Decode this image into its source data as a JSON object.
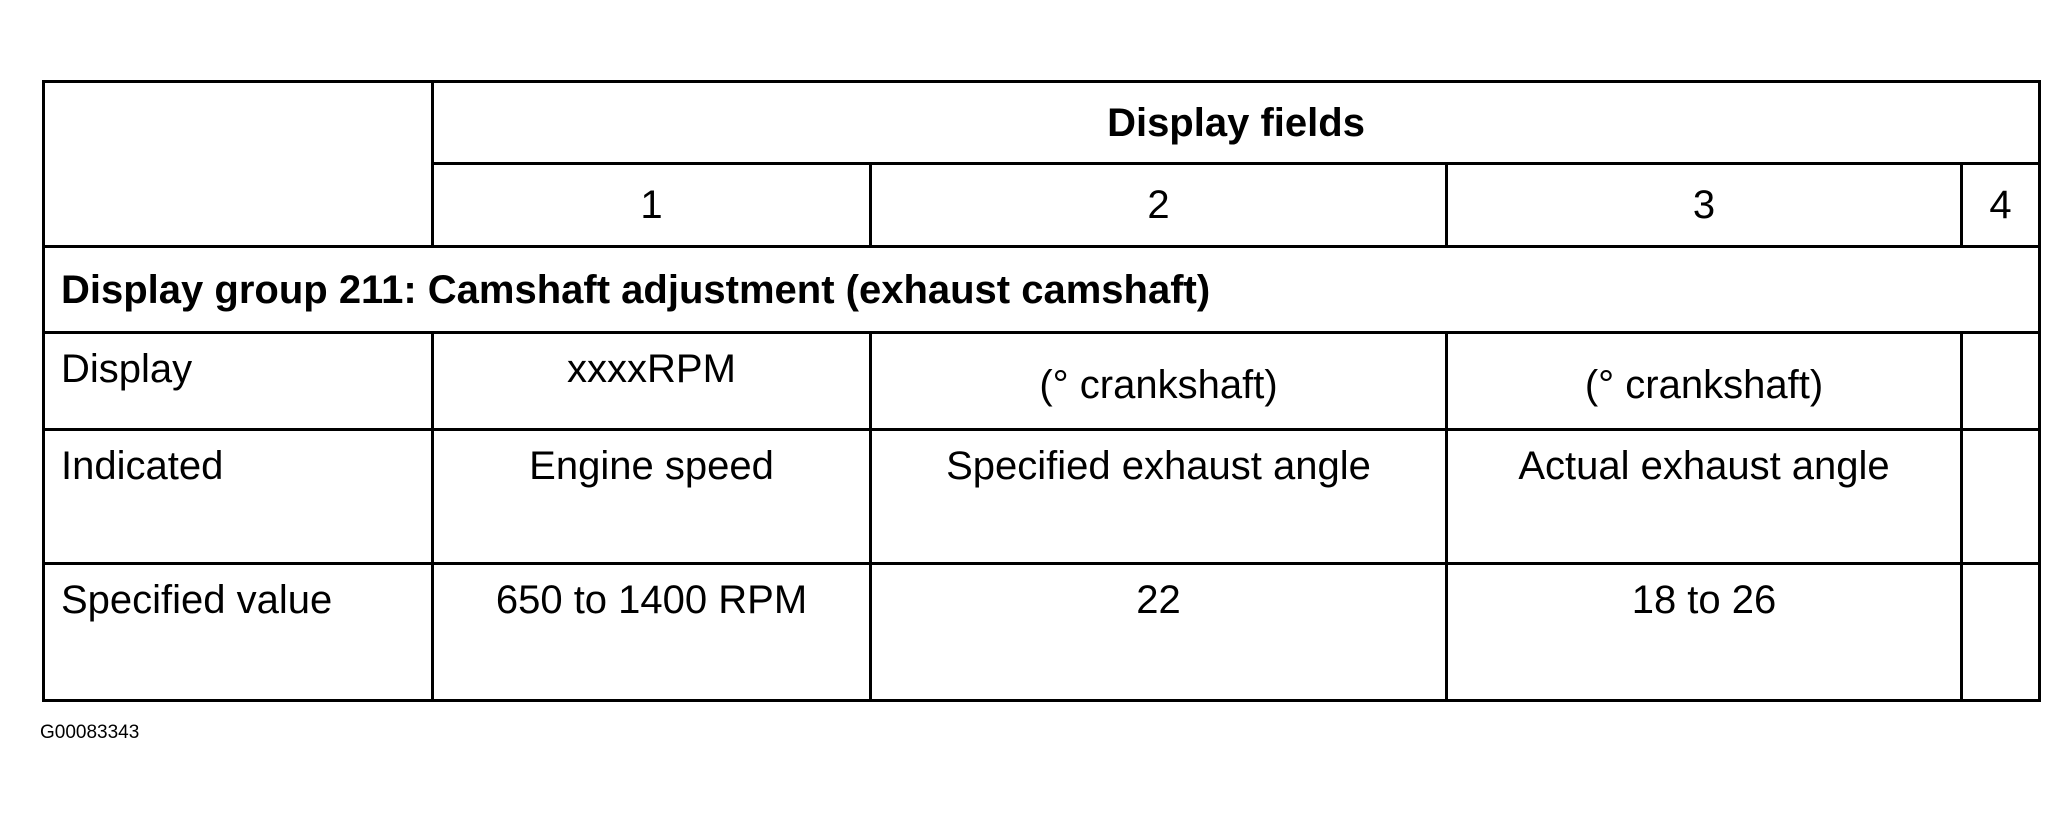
{
  "table": {
    "header": "Display fields",
    "columns": [
      "1",
      "2",
      "3",
      "4"
    ],
    "group_title": "Display group 211: Camshaft adjustment (exhaust camshaft)",
    "rows": [
      {
        "label": "Display",
        "cells": [
          "xxxxRPM",
          "(° crankshaft)",
          "(° crankshaft)",
          ""
        ]
      },
      {
        "label": "Indicated",
        "cells": [
          "Engine speed",
          "Specified exhaust angle",
          "Actual exhaust angle",
          ""
        ]
      },
      {
        "label": "Specified value",
        "cells": [
          "650 to 1400 RPM",
          "22",
          "18 to 26",
          ""
        ]
      }
    ]
  },
  "figure_id": "G00083343"
}
